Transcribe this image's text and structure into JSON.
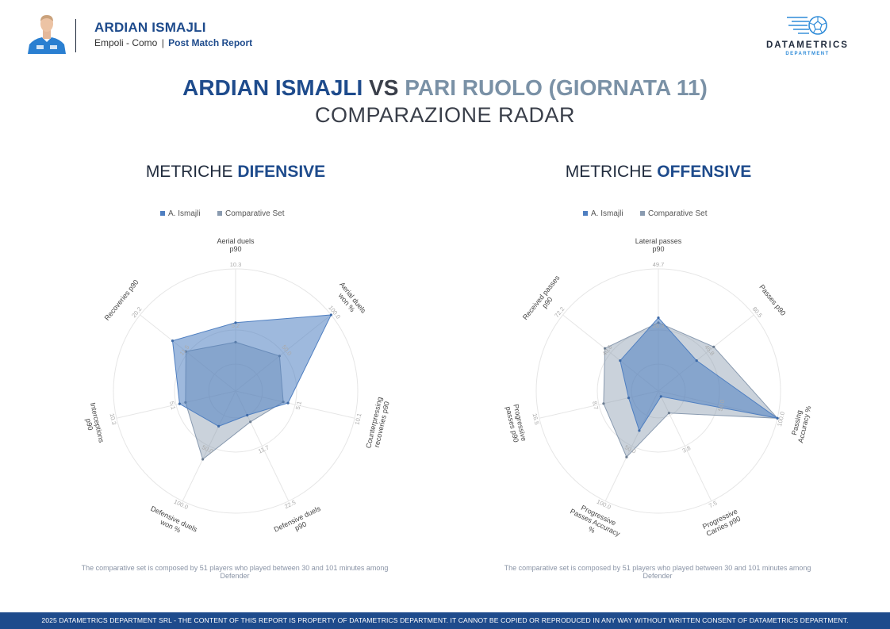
{
  "header": {
    "player_name": "ARDIAN ISMAJLI",
    "match": "Empoli - Como",
    "separator": "|",
    "report_type": "Post Match Report"
  },
  "logo": {
    "name": "DATAMETRICS",
    "sub": "DEPARTMENT"
  },
  "title": {
    "player": "ARDIAN ISMAJLI",
    "vs": "VS",
    "comparison": "PARI RUOLO (GIORNATA 11)",
    "subtitle": "COMPARAZIONE RADAR"
  },
  "sections": {
    "defensive": {
      "prefix": "METRICHE",
      "accent": "DIFENSIVE"
    },
    "offensive": {
      "prefix": "METRICHE",
      "accent": "OFFENSIVE"
    }
  },
  "notes": {
    "defensive": "The comparative set is composed by 51 players who played between 30 and 101 minutes among Defender",
    "offensive": "The comparative set is composed by 51 players who played between 30 and 101 minutes among Defender"
  },
  "footer": {
    "text": "2025 DATAMETRICS DEPARTMENT SRL - THE CONTENT OF THIS REPORT IS PROPERTY OF DATAMETRICS DEPARTMENT. IT CANNOT BE COPIED OR REPRODUCED IN ANY WAY WITHOUT WRITTEN CONSENT OF DATAMETRICS DEPARTMENT."
  },
  "colors": {
    "player": "#4f7fc1",
    "comparative": "#8a9bb0",
    "accent": "#1e4b8c"
  },
  "chart_data": [
    {
      "type": "radar",
      "id": "defensive",
      "legend": [
        "A. Ismajli",
        "Comparative Set"
      ],
      "legend_position": "top-center",
      "axes": [
        {
          "label": [
            "Aerial duels",
            "p90"
          ],
          "ticks": [
            "5.2",
            "10.3"
          ]
        },
        {
          "label": [
            "Aerial duels",
            "won %"
          ],
          "ticks": [
            "50.0",
            "100.0"
          ]
        },
        {
          "label": [
            "Counterpressing",
            "recoveries p90"
          ],
          "ticks": [
            "5.1",
            "10.1"
          ]
        },
        {
          "label": [
            "Defensive duels",
            "p90"
          ],
          "ticks": [
            "11.7",
            "22.5"
          ]
        },
        {
          "label": [
            "Defensive duels",
            "won %"
          ],
          "ticks": [
            "50.0",
            "100.0"
          ]
        },
        {
          "label": [
            "Interceptions",
            "p90"
          ],
          "ticks": [
            "5.1",
            "10.3"
          ]
        },
        {
          "label": [
            "Recoveries p90"
          ],
          "ticks": [
            "11.5",
            "20.2"
          ]
        }
      ],
      "series": [
        {
          "name": "A. Ismajli",
          "values": [
            0.56,
            1.0,
            0.44,
            0.22,
            0.32,
            0.47,
            0.66
          ]
        },
        {
          "name": "Comparative Set",
          "values": [
            0.4,
            0.46,
            0.4,
            0.28,
            0.62,
            0.42,
            0.52
          ]
        }
      ]
    },
    {
      "type": "radar",
      "id": "offensive",
      "legend": [
        "A. Ismajli",
        "Comparative Set"
      ],
      "legend_position": "top-center",
      "axes": [
        {
          "label": [
            "Lateral passes",
            "p90"
          ],
          "ticks": [
            "26.3",
            "49.7"
          ]
        },
        {
          "label": [
            "Passes p90"
          ],
          "ticks": [
            "45.8",
            "80.5"
          ]
        },
        {
          "label": [
            "Passing",
            "Accuracy %"
          ],
          "ticks": [
            "50.0",
            "100.0"
          ]
        },
        {
          "label": [
            "Progressive",
            "Carries p90"
          ],
          "ticks": [
            "3.8",
            "7.5"
          ]
        },
        {
          "label": [
            "Progressive",
            "Passes Accuracy",
            "%"
          ],
          "ticks": [
            "50.0",
            "100.0"
          ]
        },
        {
          "label": [
            "Progressive",
            "passes p90"
          ],
          "ticks": [
            "8.7",
            "16.5"
          ]
        },
        {
          "label": [
            "Received passes",
            "p90"
          ],
          "ticks": [
            "40.6",
            "72.2"
          ]
        }
      ],
      "series": [
        {
          "name": "A. Ismajli",
          "values": [
            0.6,
            0.4,
            1.0,
            0.05,
            0.36,
            0.25,
            0.4
          ]
        },
        {
          "name": "Comparative Set",
          "values": [
            0.56,
            0.58,
            1.0,
            0.2,
            0.6,
            0.46,
            0.56
          ]
        }
      ]
    }
  ]
}
